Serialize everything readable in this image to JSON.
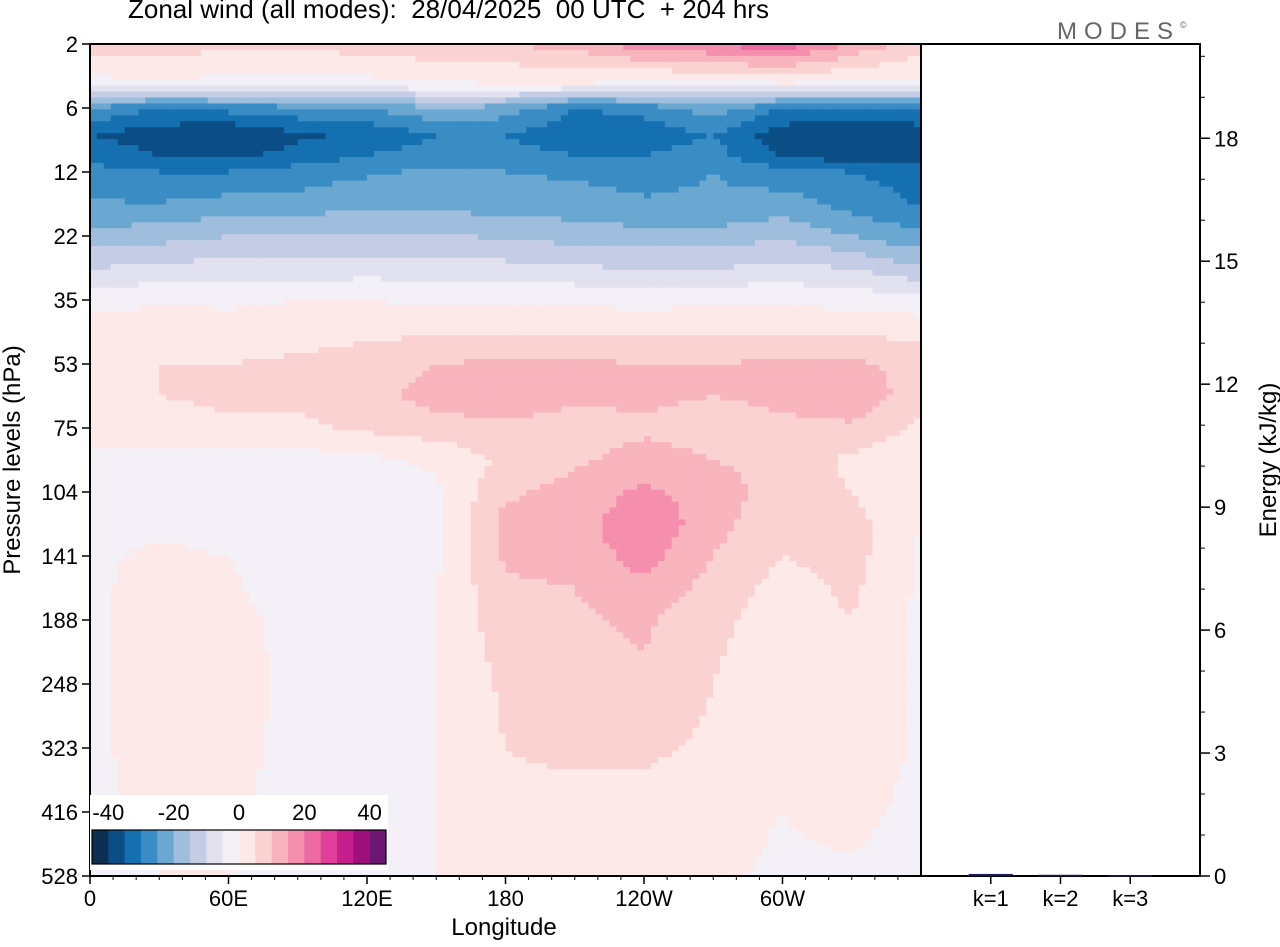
{
  "title": "Zonal wind (all modes):  28/04/2025  00 UTC  + 204 hrs",
  "brand": {
    "text": "MODES",
    "mark": "©"
  },
  "chart_data": [
    {
      "type": "heatmap",
      "title": "Zonal wind (all modes):  28/04/2025  00 UTC  + 204 hrs",
      "xlabel": "Longitude",
      "ylabel": "Pressure levels (hPa)",
      "x_ticks": [
        "0",
        "60E",
        "120E",
        "180",
        "120W",
        "60W"
      ],
      "x_range_deg": [
        0,
        360
      ],
      "y_ticks": [
        2,
        6,
        12,
        22,
        35,
        53,
        75,
        104,
        141,
        188,
        248,
        323,
        416,
        528
      ],
      "y_scale": "model levels (log-pressure)",
      "grid": false,
      "colorbar": {
        "tick_labels": [
          "-40",
          "-20",
          "0",
          "20",
          "40"
        ],
        "levels": [
          -45,
          -40,
          -35,
          -30,
          -25,
          -20,
          -15,
          -10,
          -5,
          0,
          5,
          10,
          15,
          20,
          25,
          30,
          35,
          40,
          45
        ],
        "colors": [
          "#0b2f52",
          "#0b4e86",
          "#1470b0",
          "#3a8dc4",
          "#6aa8d2",
          "#9fbede",
          "#c5cde6",
          "#e1e1ef",
          "#f4f0f7",
          "#fde9e8",
          "#fbd2d2",
          "#f8b5be",
          "#f58fad",
          "#ee6aa4",
          "#e0409a",
          "#c61f8c",
          "#9c0f7c",
          "#6c1772"
        ]
      },
      "field_note_levels_hPa": [
        2,
        6,
        12,
        22,
        35,
        53,
        75,
        104,
        141,
        188,
        248,
        323,
        416,
        528
      ],
      "field": {
        "lon": [
          0,
          30,
          60,
          90,
          120,
          150,
          180,
          210,
          240,
          270,
          300,
          330,
          360
        ],
        "rows": [
          {
            "p": 2,
            "u": [
              7,
              8,
              6,
              6,
              8,
              9,
              10,
              12,
              18,
              20,
              24,
              14,
              8
            ]
          },
          {
            "p": 4,
            "u": [
              -2,
              -1,
              -2,
              -3,
              -2,
              -1,
              0,
              0,
              -2,
              -2,
              -1,
              -1,
              -2
            ]
          },
          {
            "p": 6,
            "u": [
              -25,
              -30,
              -28,
              -26,
              -25,
              -20,
              -22,
              -30,
              -28,
              -22,
              -30,
              -32,
              -30
            ]
          },
          {
            "p": 8,
            "u": [
              -35,
              -38,
              -40,
              -36,
              -34,
              -30,
              -30,
              -34,
              -33,
              -30,
              -38,
              -40,
              -38
            ]
          },
          {
            "p": 10,
            "u": [
              -32,
              -35,
              -37,
              -33,
              -30,
              -28,
              -28,
              -30,
              -30,
              -28,
              -36,
              -38,
              -36
            ]
          },
          {
            "p": 12,
            "u": [
              -28,
              -30,
              -30,
              -28,
              -26,
              -24,
              -25,
              -26,
              -27,
              -25,
              -28,
              -30,
              -33
            ]
          },
          {
            "p": 17,
            "u": [
              -24,
              -24,
              -22,
              -22,
              -20,
              -20,
              -22,
              -22,
              -24,
              -24,
              -22,
              -26,
              -30
            ]
          },
          {
            "p": 22,
            "u": [
              -18,
              -17,
              -15,
              -15,
              -14,
              -14,
              -16,
              -17,
              -18,
              -18,
              -16,
              -20,
              -24
            ]
          },
          {
            "p": 28,
            "u": [
              -10,
              -8,
              -8,
              -8,
              -7,
              -8,
              -8,
              -9,
              -10,
              -10,
              -8,
              -10,
              -14
            ]
          },
          {
            "p": 35,
            "u": [
              -2,
              -1,
              -1,
              0,
              0,
              -1,
              -1,
              -1,
              -2,
              -1,
              -1,
              -2,
              -3
            ]
          },
          {
            "p": 44,
            "u": [
              4,
              4,
              3,
              3,
              4,
              5,
              5,
              5,
              5,
              5,
              5,
              5,
              4
            ]
          },
          {
            "p": 53,
            "u": [
              5,
              5,
              5,
              6,
              8,
              10,
              11,
              11,
              10,
              10,
              11,
              11,
              8
            ]
          },
          {
            "p": 63,
            "u": [
              4,
              5,
              6,
              6,
              8,
              12,
              13,
              11,
              11,
              10,
              11,
              14,
              7
            ]
          },
          {
            "p": 75,
            "u": [
              2,
              3,
              4,
              4,
              6,
              8,
              9,
              8,
              9,
              8,
              9,
              9,
              4
            ]
          },
          {
            "p": 88,
            "u": [
              -1,
              -2,
              -2,
              -2,
              -1,
              1,
              6,
              9,
              12,
              10,
              8,
              4,
              1
            ]
          },
          {
            "p": 104,
            "u": [
              -2,
              -3,
              -3,
              -3,
              -3,
              -1,
              9,
              12,
              16,
              13,
              7,
              5,
              0
            ]
          },
          {
            "p": 122,
            "u": [
              -2,
              -1,
              -2,
              -4,
              -4,
              -1,
              12,
              13,
              19,
              12,
              6,
              7,
              0
            ]
          },
          {
            "p": 141,
            "u": [
              -1,
              1,
              0,
              -4,
              -4,
              -1,
              11,
              12,
              17,
              10,
              5,
              7,
              -1
            ]
          },
          {
            "p": 163,
            "u": [
              -1,
              2,
              1,
              -3,
              -3,
              0,
              9,
              10,
              14,
              8,
              3,
              6,
              -1
            ]
          },
          {
            "p": 188,
            "u": [
              -1,
              2,
              2,
              -2,
              -3,
              0,
              8,
              9,
              11,
              6,
              3,
              5,
              -1
            ]
          },
          {
            "p": 248,
            "u": [
              -1,
              2,
              3,
              -2,
              -2,
              0,
              6,
              8,
              9,
              5,
              2,
              5,
              -1
            ]
          },
          {
            "p": 323,
            "u": [
              -1,
              2,
              2,
              -2,
              -2,
              0,
              5,
              6,
              6,
              4,
              1,
              4,
              -1
            ]
          },
          {
            "p": 416,
            "u": [
              -1,
              1,
              1,
              -2,
              -2,
              0,
              4,
              3,
              3,
              2,
              0,
              2,
              -2
            ]
          },
          {
            "p": 528,
            "u": [
              -1,
              0,
              0,
              -1,
              -1,
              0,
              2,
              2,
              1,
              1,
              -1,
              -1,
              -3
            ]
          }
        ]
      }
    },
    {
      "type": "bar",
      "ylabel": "Energy (kJ/kg)",
      "categories": [
        "k=1",
        "k=2",
        "k=3"
      ],
      "values": [
        0.05,
        0.03,
        0.02
      ],
      "ylim": [
        0,
        20.3
      ],
      "y_ticks": [
        0,
        3,
        6,
        9,
        12,
        15,
        18
      ],
      "bar_color": "#1a1a5a"
    }
  ]
}
